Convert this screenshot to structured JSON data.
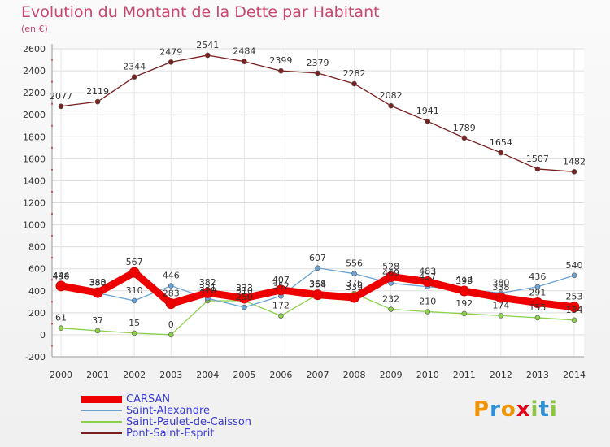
{
  "title": "Evolution du Montant de la Dette par Habitant",
  "subtitle": "(en €)",
  "brand": "Proxiti",
  "brand_colors": [
    "#f29400",
    "#2d8fd5",
    "#f29400",
    "#e2001a",
    "#8cc63f",
    "#2d8fd5",
    "#8cc63f"
  ],
  "chart_data": {
    "type": "line",
    "x": [
      "2000",
      "2001",
      "2002",
      "2003",
      "2004",
      "2005",
      "2006",
      "2007",
      "2008",
      "2009",
      "2010",
      "2011",
      "2012",
      "2013",
      "2014"
    ],
    "ylim": [
      -200,
      2600
    ],
    "yticks": [
      -200,
      0,
      200,
      400,
      600,
      800,
      1000,
      1200,
      1400,
      1600,
      1800,
      2000,
      2200,
      2400,
      2600
    ],
    "grid": true,
    "legend_position": "bottom-left",
    "series": [
      {
        "name": "CARSAN",
        "color": "#ee0000",
        "values": [
          444,
          383,
          567,
          283,
          382,
          333,
          407,
          364,
          339,
          528,
          483,
          398,
          338,
          291,
          253
        ]
      },
      {
        "name": "Saint-Alexandre",
        "color": "#6aa3d5",
        "values": [
          438,
          380,
          310,
          446,
          331,
          250,
          352,
          607,
          556,
          469,
          437,
          412,
          380,
          436,
          540
        ]
      },
      {
        "name": "Saint-Paulet-de-Caisson",
        "color": "#8bd14b",
        "values": [
          61,
          37,
          15,
          0,
          310,
          310,
          172,
          368,
          376,
          232,
          210,
          192,
          174,
          155,
          134
        ]
      },
      {
        "name": "Pont-Saint-Esprit",
        "color": "#7b2020",
        "values": [
          2077,
          2119,
          2344,
          2479,
          2541,
          2484,
          2399,
          2379,
          2282,
          2082,
          1941,
          1789,
          1654,
          1507,
          1482
        ]
      }
    ]
  }
}
